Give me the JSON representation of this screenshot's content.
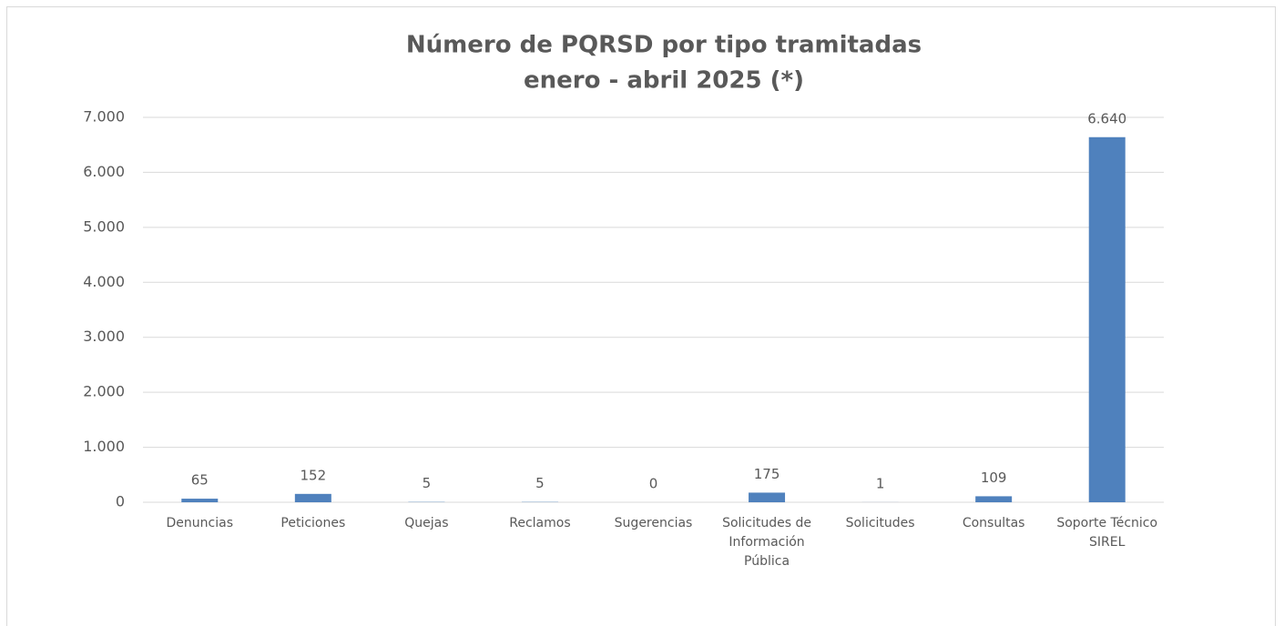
{
  "chart_data": {
    "type": "bar",
    "title": "Número de PQRSD por tipo tramitadas",
    "subtitle": "enero - abril 2025 (*)",
    "categories": [
      "Denuncias",
      "Peticiones",
      "Quejas",
      "Reclamos",
      "Sugerencias",
      "Solicitudes de Información Pública",
      "Solicitudes",
      "Consultas",
      "Soporte Técnico SIREL"
    ],
    "values": [
      65,
      152,
      5,
      5,
      0,
      175,
      1,
      109,
      6640
    ],
    "value_labels": [
      "65",
      "152",
      "5",
      "5",
      "0",
      "175",
      "1",
      "109",
      "6.640"
    ],
    "color": "#4f81bd",
    "ylim": [
      0,
      7000
    ],
    "yticks": [
      0,
      {
        "value": 1000,
        "label": "1.000"
      },
      {
        "value": 2000,
        "label": "2.000"
      },
      {
        "value": 3000,
        "label": "3.000"
      },
      {
        "value": 4000,
        "label": "4.000"
      },
      {
        "value": 5000,
        "label": "5.000"
      },
      {
        "value": 6000,
        "label": "6.000"
      },
      {
        "value": 7000,
        "label": "7.000"
      }
    ],
    "grid": true
  }
}
